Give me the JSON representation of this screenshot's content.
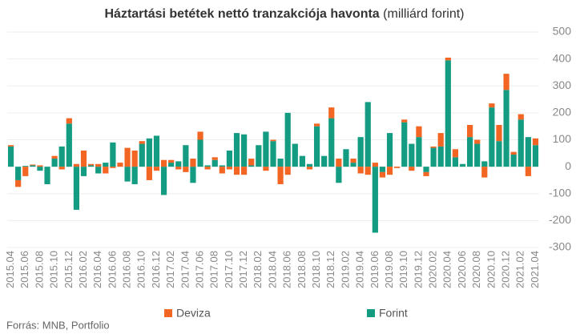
{
  "chart_data": {
    "type": "bar",
    "stacked": true,
    "title": "Háztartási betétek nettó tranzakciója havonta",
    "unit": "(milliárd forint)",
    "source": "Forrás: MNB, Portfolio",
    "categories": [
      "2015.04",
      null,
      "2015.06",
      null,
      "2015.08",
      null,
      "2015.10",
      null,
      "2015.12",
      null,
      "2016.02",
      null,
      "2016.04",
      null,
      "2016.06",
      null,
      "2016.08",
      null,
      "2016.10",
      null,
      "2016.12",
      null,
      "2017.02",
      null,
      "2017.04",
      null,
      "2017.06",
      null,
      "2017.08",
      null,
      "2017.10",
      null,
      "2017.12",
      null,
      "2018.02",
      null,
      "2018.04",
      null,
      "2018.06",
      null,
      "2018.08",
      null,
      "2018.10",
      null,
      "2018.12",
      null,
      "2019.02",
      null,
      "2019.04",
      null,
      "2019.06",
      null,
      "2019.08",
      null,
      "2019.10",
      null,
      "2019.12",
      null,
      "2020.02",
      null,
      "2020.04",
      null,
      "2020.06",
      null,
      "2020.08",
      null,
      "2020.10",
      null,
      "2020.12",
      null,
      "2021.02",
      null,
      "2021.04"
    ],
    "series": [
      {
        "name": "Forint",
        "color": "#139c82",
        "values": [
          75,
          -50,
          3,
          5,
          -15,
          -65,
          30,
          75,
          160,
          -160,
          -35,
          5,
          -25,
          15,
          90,
          0,
          -55,
          -65,
          85,
          105,
          115,
          -105,
          15,
          20,
          80,
          -60,
          100,
          5,
          25,
          5,
          60,
          125,
          120,
          5,
          80,
          130,
          95,
          30,
          200,
          85,
          40,
          10,
          150,
          40,
          180,
          -60,
          65,
          15,
          110,
          240,
          -245,
          -20,
          125,
          0,
          165,
          85,
          110,
          -20,
          70,
          75,
          395,
          35,
          10,
          110,
          85,
          20,
          220,
          95,
          285,
          45,
          175,
          110,
          80
        ]
      },
      {
        "name": "Deviza",
        "color": "#f26522",
        "values": [
          5,
          -25,
          -35,
          3,
          5,
          0,
          10,
          -10,
          20,
          10,
          60,
          5,
          10,
          -25,
          -5,
          15,
          70,
          60,
          10,
          -50,
          -15,
          25,
          10,
          -10,
          -20,
          30,
          30,
          -10,
          10,
          -25,
          -10,
          -30,
          -30,
          25,
          0,
          -15,
          5,
          -65,
          -30,
          0,
          0,
          -10,
          10,
          0,
          40,
          30,
          0,
          15,
          -25,
          -30,
          15,
          -20,
          -30,
          -5,
          10,
          -15,
          40,
          -15,
          5,
          50,
          10,
          30,
          0,
          45,
          15,
          -40,
          15,
          60,
          60,
          10,
          20,
          -35,
          25
        ]
      }
    ],
    "ylim": [
      -300,
      500
    ],
    "yticks": [
      -300,
      -200,
      -100,
      0,
      100,
      200,
      300,
      400,
      500
    ],
    "grid": true
  }
}
